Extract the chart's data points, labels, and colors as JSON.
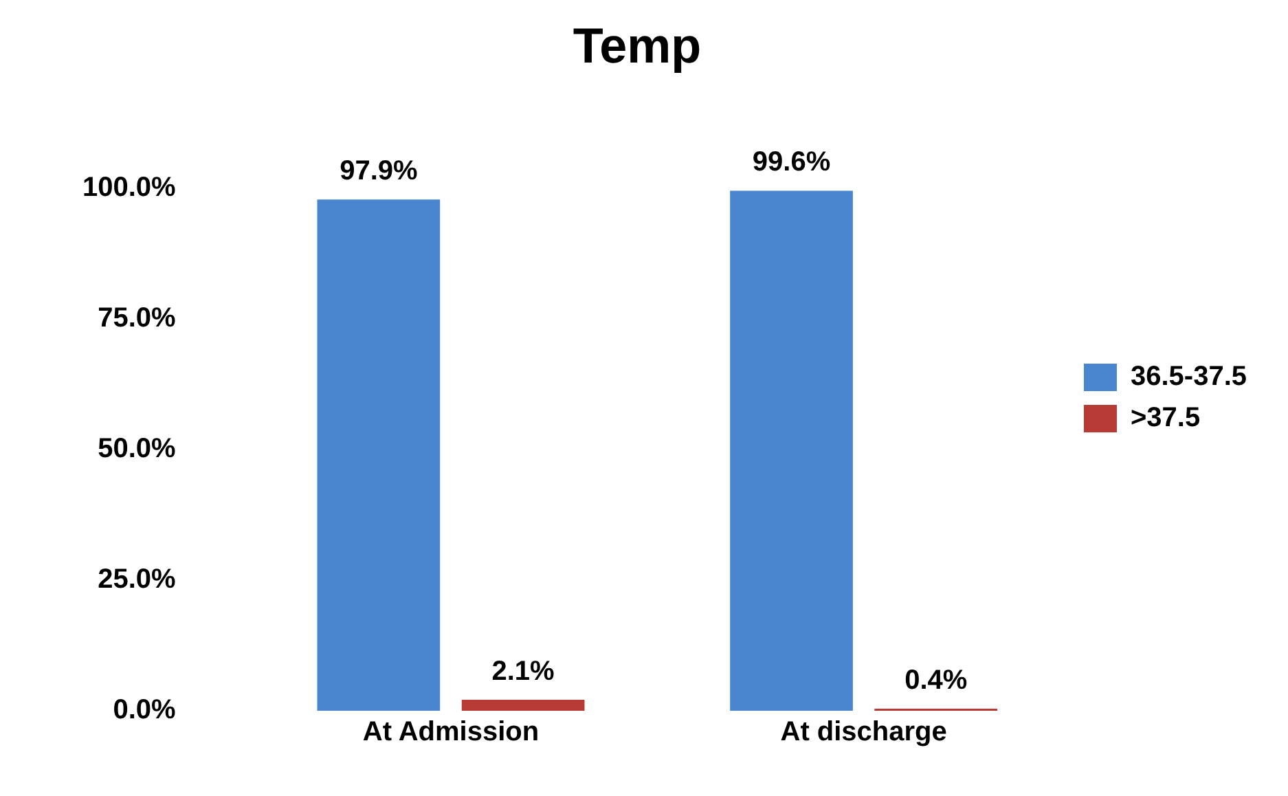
{
  "chart_data": {
    "type": "bar",
    "title": "Temp",
    "categories": [
      "At Admission",
      "At discharge"
    ],
    "series": [
      {
        "name": "36.5-37.5",
        "color": "#4a86d0",
        "values": [
          97.9,
          99.6
        ],
        "value_labels": [
          "97.9%",
          "99.6%"
        ]
      },
      {
        "name": ">37.5",
        "color": "#b83a35",
        "values": [
          2.1,
          0.4
        ],
        "value_labels": [
          "2.1%",
          "0.4%"
        ]
      }
    ],
    "ylim": [
      0,
      100
    ],
    "yticks": [
      {
        "value": 0,
        "label": "0.0%"
      },
      {
        "value": 25,
        "label": "25.0%"
      },
      {
        "value": 50,
        "label": "50.0%"
      },
      {
        "value": 75,
        "label": "75.0%"
      },
      {
        "value": 100,
        "label": "100.0%"
      }
    ],
    "grid": false,
    "legend": "right"
  }
}
